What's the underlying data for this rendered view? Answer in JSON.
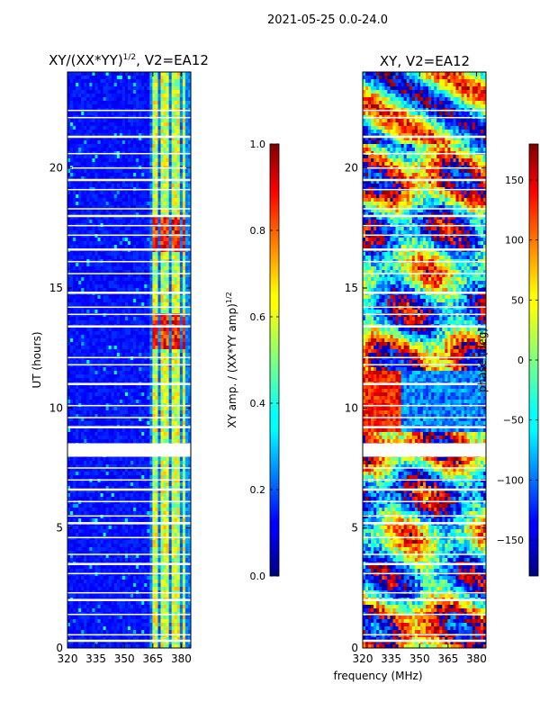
{
  "figure_title": "2021-05-25 0.0-24.0",
  "chart_data": [
    {
      "type": "heatmap",
      "title_main": "XY/(XX*YY)",
      "title_sup": "1/2",
      "title_tail": ", V2=EA12",
      "xlabel": "",
      "ylabel": "UT (hours)",
      "xlim": [
        320,
        385
      ],
      "ylim": [
        0,
        24
      ],
      "xticks": [
        "320",
        "335",
        "350",
        "365",
        "380"
      ],
      "xtick_values": [
        320,
        335,
        350,
        365,
        380
      ],
      "yticks": [
        "0",
        "5",
        "10",
        "15",
        "20"
      ],
      "ytick_values": [
        0,
        5,
        10,
        15,
        20
      ],
      "colorbar": {
        "label_main": "XY amp. / (XX*YY amp)",
        "label_sup": "1/2",
        "range": [
          0.0,
          1.0
        ],
        "ticks": [
          "0.0",
          "0.2",
          "0.4",
          "0.6",
          "0.8",
          "1.0"
        ],
        "tick_values": [
          0.0,
          0.2,
          0.4,
          0.6,
          0.8,
          1.0
        ]
      }
    },
    {
      "type": "heatmap",
      "title": "XY, V2=EA12",
      "xlabel": "frequency (MHz)",
      "ylabel": "",
      "xlim": [
        320,
        385
      ],
      "ylim": [
        0,
        24
      ],
      "xticks": [
        "320",
        "335",
        "350",
        "365",
        "380"
      ],
      "xtick_values": [
        320,
        335,
        350,
        365,
        380
      ],
      "yticks": [
        "0",
        "5",
        "10",
        "15",
        "20"
      ],
      "ytick_values": [
        0,
        5,
        10,
        15,
        20
      ],
      "colorbar": {
        "label": "phase (deg)",
        "range": [
          -180,
          180
        ],
        "ticks": [
          "−150",
          "−100",
          "−50",
          "0",
          "50",
          "100",
          "150"
        ],
        "tick_values": [
          -150,
          -100,
          -50,
          0,
          50,
          100,
          150
        ]
      }
    }
  ]
}
